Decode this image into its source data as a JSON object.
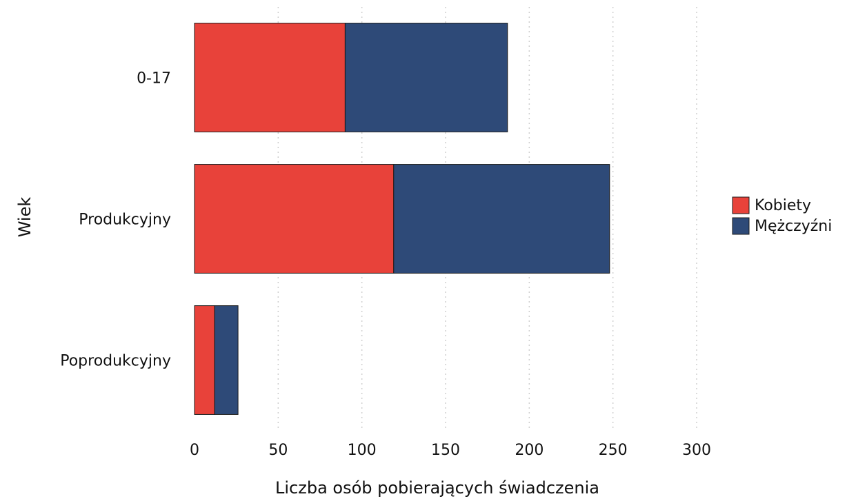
{
  "chart_data": {
    "type": "bar",
    "orientation": "horizontal",
    "stacked": true,
    "categories": [
      "0-17",
      "Produkcyjny",
      "Poprodukcyjny"
    ],
    "series": [
      {
        "name": "Kobiety",
        "values": [
          90,
          119,
          12
        ],
        "color": "#e8423a"
      },
      {
        "name": "Mężczyźni",
        "values": [
          97,
          129,
          14
        ],
        "color": "#2e4a78"
      }
    ],
    "xlabel": "Liczba osób pobierających świadczenia",
    "ylabel": "Wiek",
    "xlim": [
      0,
      300
    ],
    "xticks": [
      0,
      50,
      100,
      150,
      200,
      250,
      300
    ],
    "grid": "vertical dotted",
    "legend_position": "right"
  }
}
